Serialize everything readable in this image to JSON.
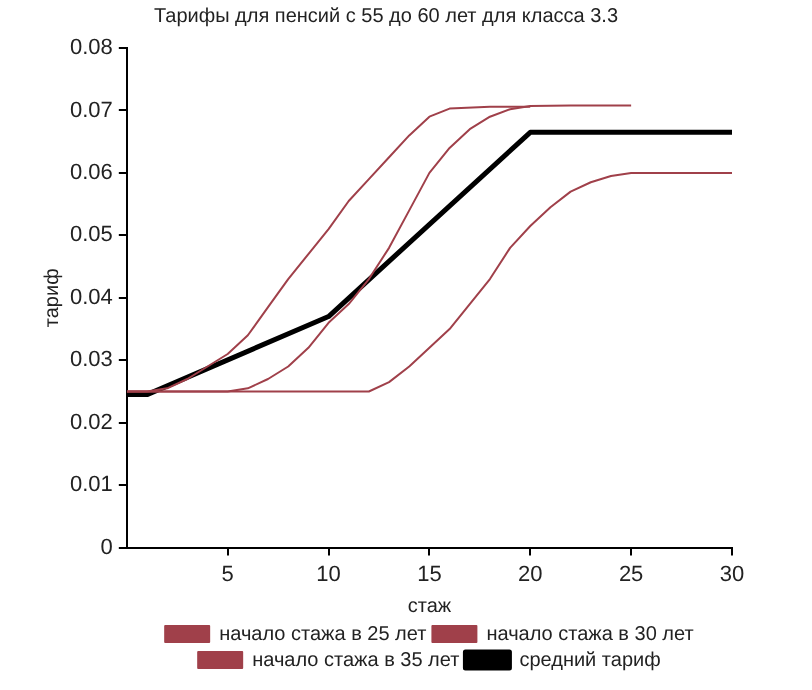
{
  "chart_data": {
    "type": "line",
    "title": "Тарифы для пенсий с 55 до 60 лет для класса 3.3",
    "xlabel": "стаж",
    "ylabel": "тариф",
    "xlim": [
      0,
      30
    ],
    "ylim": [
      0,
      0.08
    ],
    "xticks": [
      5,
      10,
      15,
      20,
      25,
      30
    ],
    "yticks": [
      0,
      0.01,
      0.02,
      0.03,
      0.04,
      0.05,
      0.06,
      0.07,
      0.08
    ],
    "grid": false,
    "legend": "bottom",
    "marker": "none",
    "line_style": "solid",
    "series": [
      {
        "name": "начало стажа в 25 лет",
        "color": "#a0404a",
        "x": [
          0,
          1,
          2,
          3,
          4,
          5,
          6,
          7,
          8,
          9,
          10,
          11,
          12,
          13,
          14,
          15,
          16,
          18,
          20
        ],
        "values": [
          0.025,
          0.025,
          0.0255,
          0.027,
          0.029,
          0.031,
          0.034,
          0.0385,
          0.043,
          0.047,
          0.051,
          0.0555,
          0.059,
          0.0625,
          0.066,
          0.069,
          0.0703,
          0.0706,
          0.0706
        ]
      },
      {
        "name": "начало стажа в 30 лет",
        "color": "#a0404a",
        "x": [
          0,
          5,
          6,
          7,
          8,
          9,
          10,
          11,
          12,
          13,
          14,
          15,
          16,
          17,
          18,
          19,
          20,
          22,
          25
        ],
        "values": [
          0.025,
          0.025,
          0.0255,
          0.027,
          0.029,
          0.032,
          0.036,
          0.039,
          0.043,
          0.048,
          0.054,
          0.06,
          0.064,
          0.067,
          0.069,
          0.0702,
          0.0707,
          0.0708,
          0.0708
        ]
      },
      {
        "name": "начало стажа в 35 лет",
        "color": "#a0404a",
        "x": [
          0,
          12,
          13,
          14,
          15,
          16,
          17,
          18,
          19,
          20,
          21,
          22,
          23,
          24,
          25,
          30
        ],
        "values": [
          0.025,
          0.025,
          0.0265,
          0.029,
          0.032,
          0.035,
          0.039,
          0.043,
          0.048,
          0.0515,
          0.0545,
          0.057,
          0.0585,
          0.0595,
          0.06,
          0.06
        ]
      },
      {
        "name": "средний тариф",
        "color": "#000000",
        "x": [
          0,
          1,
          10,
          20,
          30
        ],
        "values": [
          0.0245,
          0.0245,
          0.037,
          0.0665,
          0.0665
        ]
      }
    ]
  }
}
